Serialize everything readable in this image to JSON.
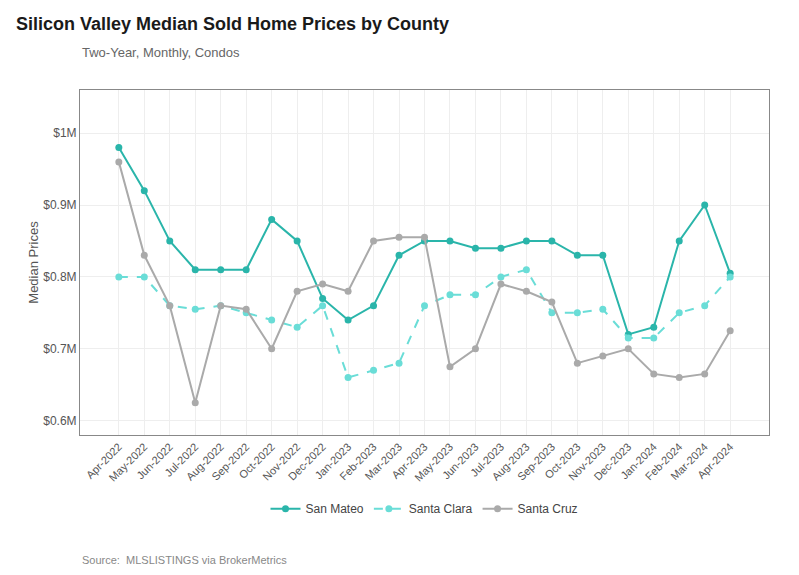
{
  "chart_data": {
    "type": "line",
    "title": "Silicon Valley Median Sold Home Prices by County",
    "subtitle": "Two-Year, Monthly, Condos",
    "source": "Source:  MLSLISTINGS via BrokerMetrics",
    "ylabel": "Median Prices",
    "categories": [
      "Apr-2022",
      "May-2022",
      "Jun-2022",
      "Jul-2022",
      "Aug-2022",
      "Sep-2022",
      "Oct-2022",
      "Nov-2022",
      "Dec-2022",
      "Jan-2023",
      "Feb-2023",
      "Mar-2023",
      "Apr-2023",
      "May-2023",
      "Jun-2023",
      "Jul-2023",
      "Aug-2023",
      "Sep-2023",
      "Oct-2023",
      "Nov-2023",
      "Dec-2023",
      "Jan-2024",
      "Feb-2024",
      "Mar-2024",
      "Apr-2024"
    ],
    "series": [
      {
        "name": "San Mateo",
        "color": "#2ab5aa",
        "line_style": "solid",
        "marker": "circle",
        "values": [
          980000,
          920000,
          850000,
          810000,
          810000,
          810000,
          880000,
          850000,
          770000,
          740000,
          760000,
          830000,
          850000,
          850000,
          840000,
          840000,
          850000,
          850000,
          830000,
          830000,
          720000,
          730000,
          850000,
          900000,
          805000
        ]
      },
      {
        "name": "Santa Clara",
        "color": "#6addd7",
        "line_style": "dashed",
        "marker": "circle",
        "values": [
          800000,
          800000,
          760000,
          755000,
          760000,
          750000,
          740000,
          730000,
          760000,
          660000,
          670000,
          680000,
          760000,
          775000,
          775000,
          800000,
          810000,
          750000,
          750000,
          755000,
          715000,
          715000,
          750000,
          760000,
          800000
        ]
      },
      {
        "name": "Santa Cruz",
        "color": "#aaaaaa",
        "line_style": "solid",
        "marker": "circle",
        "values": [
          960000,
          830000,
          760000,
          625000,
          760000,
          755000,
          700000,
          780000,
          790000,
          780000,
          850000,
          855000,
          855000,
          675000,
          700000,
          790000,
          780000,
          765000,
          680000,
          690000,
          700000,
          665000,
          660000,
          665000,
          725000
        ]
      }
    ],
    "ylim": [
      580000,
      1060000
    ],
    "yticks": [
      {
        "value": 600000,
        "label": "$0.6M"
      },
      {
        "value": 700000,
        "label": "$0.7M"
      },
      {
        "value": 800000,
        "label": "$0.8M"
      },
      {
        "value": 900000,
        "label": "$0.9M"
      },
      {
        "value": 1000000,
        "label": "$1M"
      }
    ],
    "grid": true,
    "legend": "bottom"
  }
}
